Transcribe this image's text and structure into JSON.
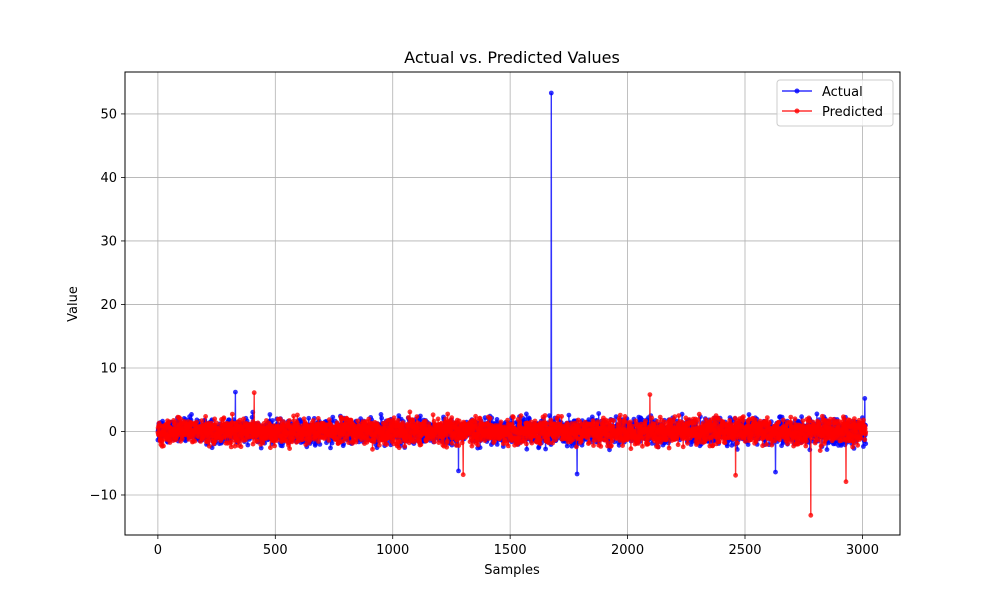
{
  "chart_data": {
    "type": "line",
    "title": "Actual vs. Predicted Values",
    "xlabel": "Samples",
    "ylabel": "Value",
    "xlim": [
      -140,
      3160
    ],
    "ylim": [
      -16.3,
      56.6
    ],
    "xticks": [
      0,
      500,
      1000,
      1500,
      2000,
      2500,
      3000
    ],
    "xtick_labels": [
      "0",
      "500",
      "1000",
      "1500",
      "2000",
      "2500",
      "3000"
    ],
    "yticks": [
      -10,
      0,
      10,
      20,
      30,
      40,
      50
    ],
    "ytick_labels": [
      "−10",
      "0",
      "10",
      "20",
      "30",
      "40",
      "50"
    ],
    "grid": true,
    "legend": "top-right",
    "n_samples": 3015,
    "series": [
      {
        "name": "Actual",
        "color": "#0000ff",
        "noise_amplitude": 4.5,
        "notable_points": [
          {
            "x": 1675,
            "y": 53.3
          },
          {
            "x": 330,
            "y": 6.2
          },
          {
            "x": 1785,
            "y": -6.7
          },
          {
            "x": 1280,
            "y": -6.2
          },
          {
            "x": 2630,
            "y": -6.4
          },
          {
            "x": 3010,
            "y": 5.2
          }
        ]
      },
      {
        "name": "Predicted",
        "color": "#ff0000",
        "noise_amplitude": 4.5,
        "notable_points": [
          {
            "x": 2780,
            "y": -13.2
          },
          {
            "x": 2930,
            "y": -7.9
          },
          {
            "x": 2460,
            "y": -6.9
          },
          {
            "x": 1300,
            "y": -6.8
          },
          {
            "x": 410,
            "y": 6.1
          },
          {
            "x": 2095,
            "y": 5.8
          }
        ]
      }
    ]
  }
}
